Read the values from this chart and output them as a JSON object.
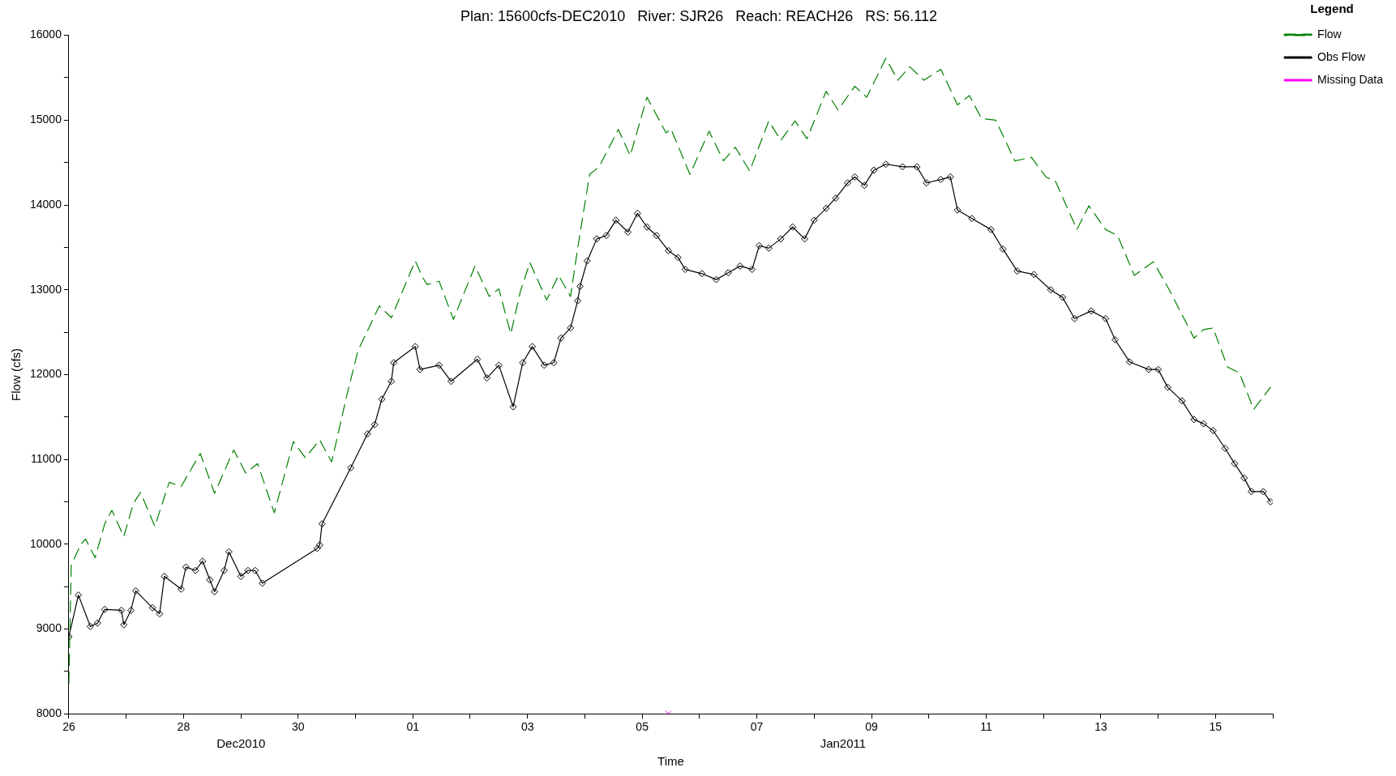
{
  "chart_data": {
    "type": "line",
    "title": "Plan: 15600cfs-DEC2010   River: SJR26   Reach: REACH26   RS: 56.112",
    "xlabel": "Time",
    "ylabel": "Flow (cfs)",
    "legend_title": "Legend",
    "legend": "top right",
    "grid": false,
    "xlim": [
      "2010-12-26",
      "2011-01-16"
    ],
    "xticks": [
      {
        "value": "2010-12-26",
        "label": "26"
      },
      {
        "value": "2010-12-27",
        "label": null
      },
      {
        "value": "2010-12-28",
        "label": "28"
      },
      {
        "value": "2010-12-29",
        "label": null
      },
      {
        "value": "2010-12-30",
        "label": "30"
      },
      {
        "value": "2010-12-31",
        "label": null
      },
      {
        "value": "2011-01-01",
        "label": "01"
      },
      {
        "value": "2011-01-02",
        "label": null
      },
      {
        "value": "2011-01-03",
        "label": "03"
      },
      {
        "value": "2011-01-04",
        "label": null
      },
      {
        "value": "2011-01-05",
        "label": "05"
      },
      {
        "value": "2011-01-06",
        "label": null
      },
      {
        "value": "2011-01-07",
        "label": "07"
      },
      {
        "value": "2011-01-08",
        "label": null
      },
      {
        "value": "2011-01-09",
        "label": "09"
      },
      {
        "value": "2011-01-10",
        "label": null
      },
      {
        "value": "2011-01-11",
        "label": "11"
      },
      {
        "value": "2011-01-12",
        "label": null
      },
      {
        "value": "2011-01-13",
        "label": "13"
      },
      {
        "value": "2011-01-14",
        "label": null
      },
      {
        "value": "2011-01-15",
        "label": "15"
      },
      {
        "value": "2011-01-16",
        "label": null
      }
    ],
    "ylim": [
      8000,
      16000
    ],
    "yticks": [
      8000,
      {
        "value": 8500,
        "label": null
      },
      9000,
      {
        "value": 9500,
        "label": null
      },
      10000,
      {
        "value": 10500,
        "label": null
      },
      11000,
      {
        "value": 11500,
        "label": null
      },
      12000,
      {
        "value": 12500,
        "label": null
      },
      13000,
      {
        "value": 13500,
        "label": null
      },
      14000,
      {
        "value": 14500,
        "label": null
      },
      15000,
      {
        "value": 15500,
        "label": null
      },
      16000
    ],
    "annotations": [
      "Dec2010",
      "Jan2011"
    ],
    "series": [
      {
        "name": "Flow",
        "color": "#008000",
        "line_style": "dashed",
        "marker": "none",
        "x": [
          "2010-12-26T00:00",
          "2010-12-26T01:00",
          "2010-12-26T05:00",
          "2010-12-26T07:00",
          "2010-12-26T11:00",
          "2010-12-26T15:00",
          "2010-12-26T18:00",
          "2010-12-26T23:00",
          "2010-12-27T03:00",
          "2010-12-27T06:00",
          "2010-12-27T12:00",
          "2010-12-27T18:00",
          "2010-12-27T23:00",
          "2010-12-28T07:00",
          "2010-12-28T13:00",
          "2010-12-28T21:00",
          "2010-12-29T02:00",
          "2010-12-29T07:00",
          "2010-12-29T14:00",
          "2010-12-29T22:00",
          "2010-12-30T03:00",
          "2010-12-30T09:00",
          "2010-12-30T14:00",
          "2010-12-30T20:00",
          "2010-12-31T01:00",
          "2010-12-31T10:00",
          "2010-12-31T15:00",
          "2011-01-01T01:00",
          "2011-01-01T04:00",
          "2011-01-01T06:00",
          "2011-01-01T11:00",
          "2011-01-01T17:00",
          "2011-01-02T02:00",
          "2011-01-02T08:00",
          "2011-01-02T12:00",
          "2011-01-02T17:00",
          "2011-01-02T21:00",
          "2011-01-03T01:00",
          "2011-01-03T08:00",
          "2011-01-03T13:00",
          "2011-01-03T18:00",
          "2011-01-03T21:00",
          "2011-01-04T02:00",
          "2011-01-04T06:00",
          "2011-01-04T14:00",
          "2011-01-04T19:00",
          "2011-01-05T02:00",
          "2011-01-05T10:00",
          "2011-01-05T12:00",
          "2011-01-05T20:00",
          "2011-01-06T04:00",
          "2011-01-06T10:00",
          "2011-01-06T15:00",
          "2011-01-06T21:00",
          "2011-01-07T05:00",
          "2011-01-07T10:00",
          "2011-01-07T16:00",
          "2011-01-07T21:00",
          "2011-01-08T05:00",
          "2011-01-08T10:00",
          "2011-01-08T17:00",
          "2011-01-08T22:00",
          "2011-01-09T06:00",
          "2011-01-09T11:00",
          "2011-01-09T16:00",
          "2011-01-09T22:00",
          "2011-01-10T05:00",
          "2011-01-10T12:00",
          "2011-01-10T17:00",
          "2011-01-10T22:00",
          "2011-01-11T04:00",
          "2011-01-11T12:00",
          "2011-01-11T19:00",
          "2011-01-12T01:00",
          "2011-01-12T05:00",
          "2011-01-12T14:00",
          "2011-01-12T19:00",
          "2011-01-13T02:00",
          "2011-01-13T07:00",
          "2011-01-13T14:00",
          "2011-01-13T22:00",
          "2011-01-14T05:00",
          "2011-01-14T15:00",
          "2011-01-14T19:00",
          "2011-01-14T23:00",
          "2011-01-15T05:00",
          "2011-01-15T10:00",
          "2011-01-15T16:00",
          "2011-01-15T23:00"
        ],
        "values": [
          8360,
          9750,
          10000,
          10060,
          9840,
          10240,
          10400,
          10090,
          10480,
          10610,
          10210,
          10730,
          10680,
          11070,
          10600,
          11110,
          10840,
          10950,
          10370,
          11210,
          11020,
          11230,
          10970,
          11710,
          12280,
          12810,
          12670,
          13340,
          13150,
          13060,
          13100,
          12650,
          13280,
          12920,
          13010,
          12480,
          12980,
          13320,
          12880,
          13170,
          12920,
          13490,
          14360,
          14450,
          14890,
          14580,
          15270,
          14850,
          14900,
          14360,
          14870,
          14520,
          14680,
          14400,
          14990,
          14760,
          14990,
          14780,
          15340,
          15120,
          15400,
          15270,
          15730,
          15470,
          15630,
          15470,
          15600,
          15180,
          15290,
          15020,
          15000,
          14520,
          14560,
          14330,
          14280,
          13710,
          13990,
          13710,
          13640,
          13170,
          13330,
          12980,
          12430,
          12530,
          12550,
          12090,
          12020,
          11590,
          11850
        ]
      },
      {
        "name": "Obs Flow",
        "color": "#000000",
        "line_style": "solid",
        "marker": "diamond",
        "x": [
          "2010-12-26T00:00",
          "2010-12-26T04:00",
          "2010-12-26T09:00",
          "2010-12-26T12:00",
          "2010-12-26T15:00",
          "2010-12-26T22:00",
          "2010-12-26T23:00",
          "2010-12-27T02:00",
          "2010-12-27T04:00",
          "2010-12-27T11:00",
          "2010-12-27T14:00",
          "2010-12-27T16:00",
          "2010-12-27T23:00",
          "2010-12-28T01:00",
          "2010-12-28T05:00",
          "2010-12-28T08:00",
          "2010-12-28T11:00",
          "2010-12-28T13:00",
          "2010-12-28T17:00",
          "2010-12-28T19:00",
          "2010-12-29T00:00",
          "2010-12-29T03:00",
          "2010-12-29T06:00",
          "2010-12-29T09:00",
          "2010-12-30T08:00",
          "2010-12-30T09:00",
          "2010-12-30T10:00",
          "2010-12-30T22:00",
          "2010-12-31T05:00",
          "2010-12-31T08:00",
          "2010-12-31T11:00",
          "2010-12-31T15:00",
          "2010-12-31T16:00",
          "2011-01-01T01:00",
          "2011-01-01T03:00",
          "2011-01-01T11:00",
          "2011-01-01T16:00",
          "2011-01-02T03:00",
          "2011-01-02T07:00",
          "2011-01-02T12:00",
          "2011-01-02T18:00",
          "2011-01-02T22:00",
          "2011-01-03T02:00",
          "2011-01-03T07:00",
          "2011-01-03T11:00",
          "2011-01-03T14:00",
          "2011-01-03T18:00",
          "2011-01-03T21:00",
          "2011-01-03T22:00",
          "2011-01-04T01:00",
          "2011-01-04T05:00",
          "2011-01-04T09:00",
          "2011-01-04T13:00",
          "2011-01-04T18:00",
          "2011-01-04T22:00",
          "2011-01-05T02:00",
          "2011-01-05T06:00",
          "2011-01-05T11:00",
          "2011-01-05T15:00",
          "2011-01-05T18:00",
          "2011-01-06T01:00",
          "2011-01-06T07:00",
          "2011-01-06T12:00",
          "2011-01-06T17:00",
          "2011-01-06T22:00",
          "2011-01-07T01:00",
          "2011-01-07T05:00",
          "2011-01-07T10:00",
          "2011-01-07T15:00",
          "2011-01-07T20:00",
          "2011-01-08T00:00",
          "2011-01-08T05:00",
          "2011-01-08T09:00",
          "2011-01-08T14:00",
          "2011-01-08T17:00",
          "2011-01-08T21:00",
          "2011-01-09T01:00",
          "2011-01-09T06:00",
          "2011-01-09T13:00",
          "2011-01-09T19:00",
          "2011-01-09T23:00",
          "2011-01-10T05:00",
          "2011-01-10T09:00",
          "2011-01-10T12:00",
          "2011-01-10T18:00",
          "2011-01-11T02:00",
          "2011-01-11T07:00",
          "2011-01-11T13:00",
          "2011-01-11T20:00",
          "2011-01-12T03:00",
          "2011-01-12T08:00",
          "2011-01-12T13:00",
          "2011-01-12T20:00",
          "2011-01-13T02:00",
          "2011-01-13T06:00",
          "2011-01-13T12:00",
          "2011-01-13T20:00",
          "2011-01-14T00:00",
          "2011-01-14T04:00",
          "2011-01-14T10:00",
          "2011-01-14T15:00",
          "2011-01-14T19:00",
          "2011-01-14T23:00",
          "2011-01-15T04:00",
          "2011-01-15T08:00",
          "2011-01-15T12:00",
          "2011-01-15T15:00",
          "2011-01-15T20:00",
          "2011-01-15T23:00"
        ],
        "values": [
          8910,
          9400,
          9030,
          9070,
          9230,
          9220,
          9050,
          9220,
          9450,
          9250,
          9180,
          9620,
          9470,
          9730,
          9690,
          9800,
          9580,
          9440,
          9690,
          9910,
          9620,
          9690,
          9690,
          9540,
          9950,
          9990,
          10240,
          10900,
          11300,
          11410,
          11710,
          11920,
          12140,
          12330,
          12060,
          12110,
          11920,
          12180,
          11960,
          12110,
          11620,
          12140,
          12330,
          12110,
          12140,
          12430,
          12550,
          12870,
          13040,
          13340,
          13600,
          13640,
          13820,
          13680,
          13900,
          13740,
          13640,
          13460,
          13380,
          13240,
          13190,
          13120,
          13200,
          13280,
          13240,
          13520,
          13490,
          13600,
          13740,
          13600,
          13820,
          13960,
          14080,
          14260,
          14330,
          14230,
          14410,
          14480,
          14450,
          14450,
          14260,
          14300,
          14330,
          13940,
          13840,
          13710,
          13480,
          13220,
          13180,
          13000,
          12910,
          12660,
          12750,
          12660,
          12410,
          12150,
          12060,
          12060,
          11850,
          11690,
          11470,
          11420,
          11340,
          11130,
          10950,
          10780,
          10620,
          10620,
          10500
        ]
      },
      {
        "name": "Missing Data",
        "type": "scatter",
        "color": "#ff00ff",
        "marker": "cross",
        "x": [
          "2011-01-05T11:00"
        ],
        "values": [
          8000
        ]
      }
    ]
  }
}
